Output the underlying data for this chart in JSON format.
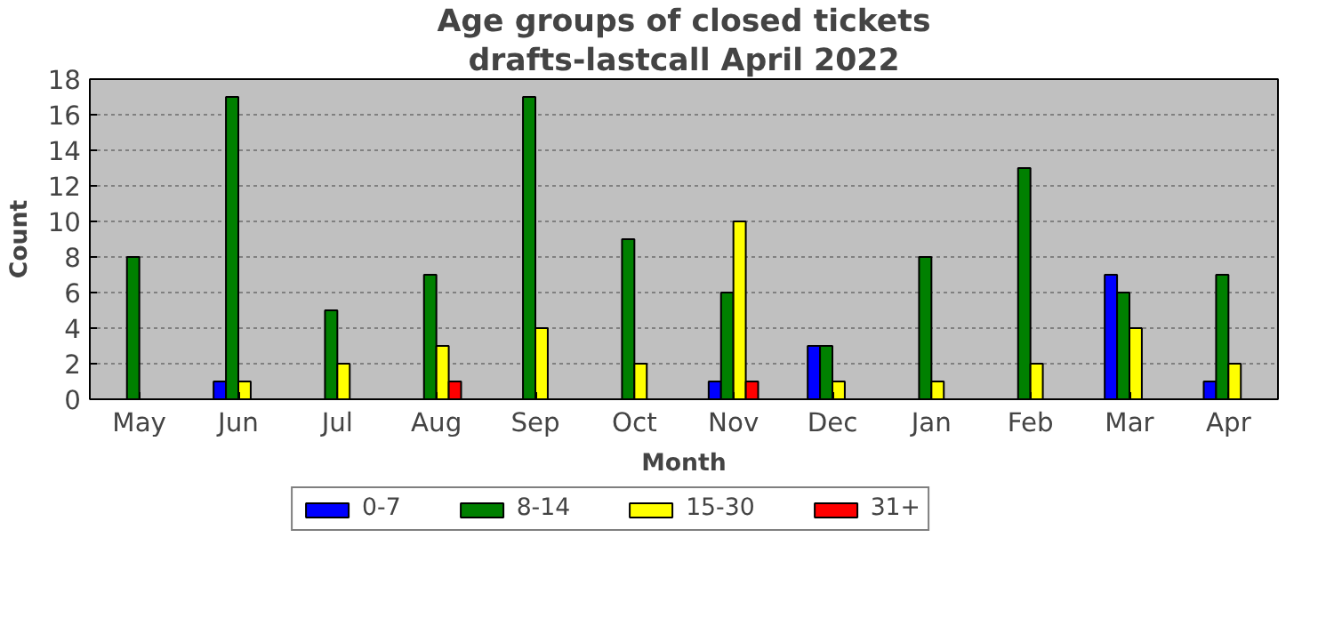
{
  "chart_data": {
    "type": "bar",
    "title": "Age groups of closed tickets",
    "subtitle": "drafts-lastcall April 2022",
    "xlabel": "Month",
    "ylabel": "Count",
    "categories": [
      "May",
      "Jun",
      "Jul",
      "Aug",
      "Sep",
      "Oct",
      "Nov",
      "Dec",
      "Jan",
      "Feb",
      "Mar",
      "Apr"
    ],
    "series": [
      {
        "name": "0-7",
        "color": "#0000ff",
        "values": [
          0,
          1,
          0,
          0,
          0,
          0,
          1,
          3,
          0,
          0,
          7,
          1
        ]
      },
      {
        "name": "8-14",
        "color": "#008000",
        "values": [
          8,
          17,
          5,
          7,
          17,
          9,
          6,
          3,
          8,
          13,
          6,
          7
        ]
      },
      {
        "name": "15-30",
        "color": "#ffff00",
        "values": [
          0,
          1,
          2,
          3,
          4,
          2,
          10,
          1,
          1,
          2,
          4,
          2
        ]
      },
      {
        "name": "31+",
        "color": "#ff0000",
        "values": [
          0,
          0,
          0,
          1,
          0,
          0,
          1,
          0,
          0,
          0,
          0,
          0
        ]
      }
    ],
    "ylim": [
      0,
      18
    ],
    "yticks": [
      0,
      2,
      4,
      6,
      8,
      10,
      12,
      14,
      16,
      18
    ],
    "grid": "y",
    "legend": "bottom"
  }
}
